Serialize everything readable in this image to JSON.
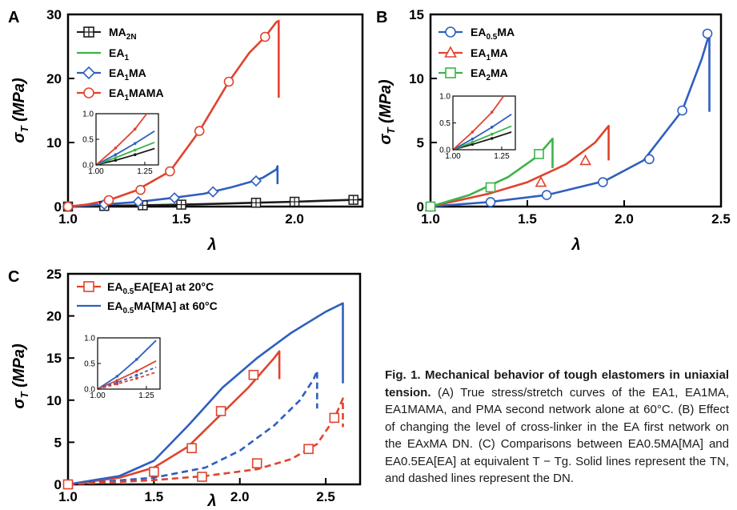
{
  "caption": {
    "title": "Fig. 1. Mechanical behavior of tough elastomers in uniaxial tension.",
    "body": "(A) True stress/stretch curves of the EA1, EA1MA, EA1MAMA, and PMA second network alone at 60°C. (B) Effect of changing the level of cross-linker in the EA first network on the EAxMA DN. (C) Comparisons between EA0.5MA[MA] and EA0.5EA[EA] at equivalent T − Tg. Solid lines represent the TN, and dashed lines represent the DN."
  },
  "colors": {
    "black": "#1a1a1a",
    "green": "#3cb34a",
    "blue": "#2f5fbf",
    "red": "#e0432e"
  },
  "chart_data": [
    {
      "panel": "A",
      "type": "line",
      "xlabel": "λ",
      "ylabel": "σT (MPa)",
      "xlim": [
        1.0,
        2.3
      ],
      "ylim": [
        0,
        30
      ],
      "xticks": [
        "1.0",
        "1.5",
        "2.0"
      ],
      "yticks": [
        "0",
        "10",
        "20",
        "30"
      ],
      "legend_position": "top-left",
      "series": [
        {
          "name": "MA2N",
          "color": "#1a1a1a",
          "marker": "square-cross",
          "style": "solid",
          "x": [
            1.0,
            1.16,
            1.33,
            1.5,
            1.67,
            1.83,
            2.0,
            2.12,
            2.26,
            2.3
          ],
          "y": [
            0,
            0.1,
            0.2,
            0.3,
            0.45,
            0.6,
            0.75,
            0.9,
            1.05,
            1.1
          ]
        },
        {
          "name": "EA1",
          "color": "#3cb34a",
          "marker": "none",
          "style": "solid",
          "x": [
            1.0,
            1.05,
            1.1,
            1.13
          ],
          "y": [
            0,
            0.12,
            0.28,
            0.38
          ]
        },
        {
          "name": "EA1MA",
          "color": "#2f5fbf",
          "marker": "diamond",
          "style": "solid",
          "x": [
            1.0,
            1.15,
            1.3,
            1.45,
            1.6,
            1.72,
            1.8,
            1.86,
            1.92,
            1.925,
            1.925
          ],
          "y": [
            0,
            0.3,
            0.7,
            1.3,
            2.0,
            3.0,
            3.8,
            4.5,
            5.8,
            6.3,
            3.5
          ]
        },
        {
          "name": "EA1MAMA",
          "color": "#e0432e",
          "marker": "circle",
          "style": "solid",
          "x": [
            1.0,
            1.08,
            1.18,
            1.3,
            1.45,
            1.58,
            1.71,
            1.8,
            1.87,
            1.92,
            1.93,
            1.93
          ],
          "y": [
            0,
            0.3,
            1.0,
            2.5,
            5.5,
            11.8,
            19.5,
            24.0,
            26.5,
            28.8,
            29.0,
            17.0
          ]
        }
      ],
      "markers": {
        "MA2N": {
          "x": [
            1.0,
            1.16,
            1.33,
            1.5,
            1.83,
            2.0,
            2.26
          ],
          "y": [
            0,
            0.1,
            0.2,
            0.3,
            0.6,
            0.75,
            1.05
          ]
        },
        "EA1MA": {
          "x": [
            1.0,
            1.16,
            1.31,
            1.47,
            1.64,
            1.83
          ],
          "y": [
            0,
            0.35,
            0.75,
            1.35,
            2.3,
            4.0
          ]
        },
        "EA1MAMA": {
          "x": [
            1.0,
            1.18,
            1.32,
            1.45,
            1.58,
            1.71,
            1.87
          ],
          "y": [
            0,
            1.0,
            2.6,
            5.5,
            11.8,
            19.5,
            26.5
          ]
        }
      },
      "inset": {
        "xlim": [
          1.0,
          1.32
        ],
        "ylim": [
          0,
          1.0
        ],
        "xticks": [
          "1.00",
          "1.25"
        ],
        "yticks": [
          "0.0",
          "0.5",
          "1.0"
        ],
        "series": [
          {
            "color": "#1a1a1a",
            "x": [
              1.0,
              1.1,
              1.2,
              1.3
            ],
            "y": [
              0,
              0.09,
              0.2,
              0.32
            ]
          },
          {
            "color": "#3cb34a",
            "x": [
              1.0,
              1.1,
              1.2,
              1.3
            ],
            "y": [
              0,
              0.14,
              0.29,
              0.44
            ]
          },
          {
            "color": "#2f5fbf",
            "x": [
              1.0,
              1.1,
              1.2,
              1.3
            ],
            "y": [
              0,
              0.2,
              0.42,
              0.66
            ]
          },
          {
            "color": "#e0432e",
            "x": [
              1.0,
              1.1,
              1.2,
              1.26
            ],
            "y": [
              0,
              0.33,
              0.7,
              1.0
            ]
          }
        ]
      }
    },
    {
      "panel": "B",
      "type": "line",
      "xlabel": "λ",
      "ylabel": "σT (MPa)",
      "xlim": [
        1.0,
        2.5
      ],
      "ylim": [
        0,
        15
      ],
      "xticks": [
        "1.0",
        "1.5",
        "2.0",
        "2.5"
      ],
      "yticks": [
        "0",
        "5",
        "10",
        "15"
      ],
      "legend_position": "top-left",
      "series": [
        {
          "name": "EA0.5MA",
          "color": "#2f5fbf",
          "marker": "circle",
          "style": "solid",
          "x": [
            1.0,
            1.3,
            1.6,
            1.9,
            2.1,
            2.3,
            2.4,
            2.44,
            2.44
          ],
          "y": [
            0,
            0.35,
            0.9,
            2.0,
            3.6,
            7.5,
            11.5,
            13.5,
            7.4
          ]
        },
        {
          "name": "EA1MA",
          "color": "#e0432e",
          "marker": "triangle",
          "style": "solid",
          "x": [
            1.0,
            1.3,
            1.5,
            1.7,
            1.85,
            1.92,
            1.92
          ],
          "y": [
            0,
            1.0,
            1.9,
            3.3,
            5.0,
            6.3,
            3.6
          ]
        },
        {
          "name": "EA2MA",
          "color": "#3cb34a",
          "marker": "square",
          "style": "solid",
          "x": [
            1.0,
            1.2,
            1.4,
            1.55,
            1.63,
            1.63
          ],
          "y": [
            0,
            0.9,
            2.3,
            3.9,
            5.3,
            3.0
          ]
        }
      ],
      "markers": {
        "EA0.5MA": {
          "x": [
            1.0,
            1.31,
            1.6,
            1.89,
            2.13,
            2.3,
            2.43
          ],
          "y": [
            0,
            0.35,
            0.9,
            1.9,
            3.7,
            7.5,
            13.5
          ]
        },
        "EA1MA": {
          "x": [
            1.0,
            1.57,
            1.8
          ],
          "y": [
            0,
            1.9,
            3.6
          ]
        },
        "EA2MA": {
          "x": [
            1.0,
            1.31,
            1.56
          ],
          "y": [
            0,
            1.5,
            4.1
          ]
        }
      },
      "inset": {
        "xlim": [
          1.0,
          1.32
        ],
        "ylim": [
          0,
          1.0
        ],
        "xticks": [
          "1.00",
          "1.25"
        ],
        "yticks": [
          "0.0",
          "0.5",
          "1.0"
        ],
        "series": [
          {
            "color": "#1a1a1a",
            "x": [
              1.0,
              1.1,
              1.2,
              1.3
            ],
            "y": [
              0,
              0.1,
              0.21,
              0.33
            ]
          },
          {
            "color": "#3cb34a",
            "x": [
              1.0,
              1.1,
              1.2,
              1.3
            ],
            "y": [
              0,
              0.14,
              0.29,
              0.44
            ]
          },
          {
            "color": "#2f5fbf",
            "x": [
              1.0,
              1.1,
              1.2,
              1.3
            ],
            "y": [
              0,
              0.2,
              0.42,
              0.66
            ]
          },
          {
            "color": "#e0432e",
            "x": [
              1.0,
              1.1,
              1.2,
              1.26
            ],
            "y": [
              0,
              0.33,
              0.7,
              1.0
            ]
          }
        ]
      }
    },
    {
      "panel": "C",
      "type": "line",
      "xlabel": "λ",
      "ylabel": "σT (MPa)",
      "xlim": [
        1.0,
        2.7
      ],
      "ylim": [
        0,
        25
      ],
      "xticks": [
        "1.0",
        "1.5",
        "2.0",
        "2.5"
      ],
      "yticks": [
        "0",
        "5",
        "10",
        "15",
        "20",
        "25"
      ],
      "legend_position": "top-left",
      "series": [
        {
          "name": "EA0.5EA[EA] at 20°C",
          "color": "#e0432e",
          "marker": "square",
          "style": "solid",
          "x": [
            1.0,
            1.3,
            1.5,
            1.7,
            1.9,
            2.05,
            2.2,
            2.23,
            2.23
          ],
          "y": [
            0,
            0.8,
            2.0,
            4.5,
            8.5,
            11.5,
            15.0,
            15.8,
            12.5
          ]
        },
        {
          "name": "EA0.5MA[MA] at 60°C",
          "color": "#2f5fbf",
          "marker": "none",
          "style": "solid",
          "x": [
            1.0,
            1.3,
            1.5,
            1.7,
            1.9,
            2.1,
            2.3,
            2.5,
            2.6,
            2.6
          ],
          "y": [
            0,
            1.0,
            2.8,
            7.0,
            11.5,
            15.0,
            18.0,
            20.5,
            21.5,
            12.0
          ]
        },
        {
          "name": "",
          "color": "#2f5fbf",
          "marker": "none",
          "style": "dashed",
          "x": [
            1.0,
            1.5,
            1.8,
            2.0,
            2.2,
            2.35,
            2.43,
            2.45,
            2.45
          ],
          "y": [
            0,
            0.8,
            2.0,
            4.0,
            7.0,
            10.0,
            12.5,
            13.5,
            9.0
          ]
        },
        {
          "name": "",
          "color": "#e0432e",
          "marker": "square",
          "style": "dashed",
          "x": [
            1.0,
            1.5,
            1.8,
            2.1,
            2.3,
            2.45,
            2.55,
            2.6,
            2.6
          ],
          "y": [
            0,
            0.5,
            1.0,
            1.8,
            3.0,
            4.8,
            7.8,
            10.2,
            6.8
          ]
        }
      ],
      "markers": {
        "EA0.5EA[EA] at 20°C": {
          "x": [
            1.0,
            1.5,
            1.72,
            1.89,
            2.08
          ],
          "y": [
            0,
            1.5,
            4.3,
            8.7,
            13.0
          ]
        },
        "EA0.5EA[EA] DN": {
          "x": [
            1.78,
            2.1,
            2.4,
            2.55
          ],
          "y": [
            0.9,
            2.5,
            4.2,
            7.9
          ]
        }
      },
      "inset": {
        "xlim": [
          1.0,
          1.32
        ],
        "ylim": [
          0,
          1.0
        ],
        "xticks": [
          "1.00",
          "1.25"
        ],
        "yticks": [
          "0.0",
          "0.5",
          "1.0"
        ],
        "series": [
          {
            "color": "#2f5fbf",
            "style": "solid",
            "x": [
              1.0,
              1.1,
              1.2,
              1.3
            ],
            "y": [
              0,
              0.25,
              0.58,
              0.95
            ]
          },
          {
            "color": "#e0432e",
            "style": "solid",
            "x": [
              1.0,
              1.1,
              1.2,
              1.3
            ],
            "y": [
              0,
              0.17,
              0.35,
              0.55
            ]
          },
          {
            "color": "#2f5fbf",
            "style": "dashed",
            "x": [
              1.0,
              1.1,
              1.2,
              1.3
            ],
            "y": [
              0,
              0.13,
              0.27,
              0.43
            ]
          },
          {
            "color": "#e0432e",
            "style": "dashed",
            "x": [
              1.0,
              1.1,
              1.2,
              1.3
            ],
            "y": [
              0,
              0.1,
              0.21,
              0.33
            ]
          }
        ]
      }
    }
  ]
}
